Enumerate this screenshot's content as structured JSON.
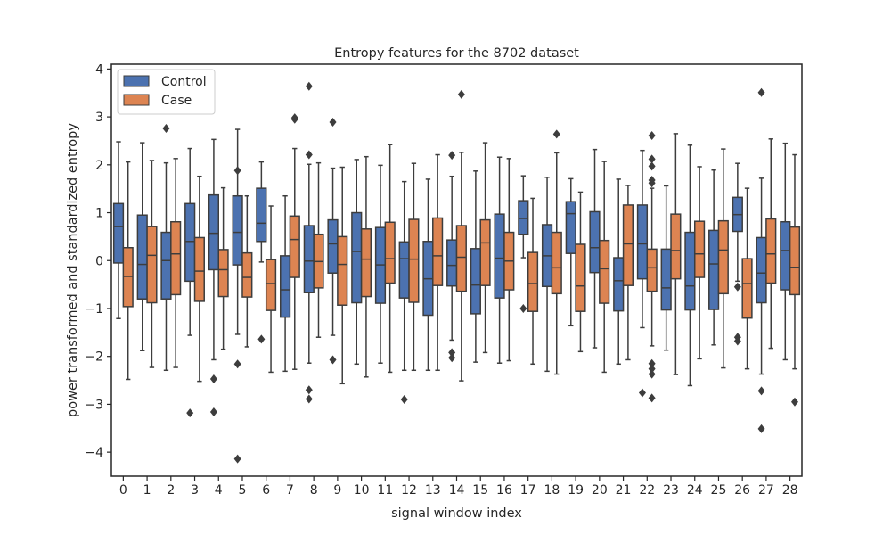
{
  "chart_data": {
    "type": "boxplot",
    "title": "Entropy features for the 8702 dataset",
    "xlabel": "signal window index",
    "ylabel": "power transformed and standardized entropy",
    "categories": [
      "0",
      "1",
      "2",
      "3",
      "4",
      "5",
      "6",
      "7",
      "8",
      "9",
      "10",
      "11",
      "12",
      "13",
      "14",
      "15",
      "16",
      "17",
      "18",
      "19",
      "20",
      "21",
      "22",
      "23",
      "24",
      "25",
      "26",
      "27",
      "28"
    ],
    "ylim": [
      -4.5,
      4.1
    ],
    "yticks": [
      4,
      3,
      2,
      1,
      0,
      -1,
      -2,
      -3,
      -4
    ],
    "ytick_labels": [
      "4",
      "3",
      "2",
      "1",
      "0",
      "−1",
      "−2",
      "−3",
      "−4"
    ],
    "legend": {
      "position": "top-left"
    },
    "series": [
      {
        "name": "Control",
        "color": "#4c72b0",
        "boxes": [
          {
            "q1": -0.05,
            "median": 0.71,
            "q3": 1.19,
            "whislo": -1.21,
            "whishi": 2.48,
            "fliers": []
          },
          {
            "q1": -0.8,
            "median": -0.08,
            "q3": 0.95,
            "whislo": -1.88,
            "whishi": 2.46,
            "fliers": []
          },
          {
            "q1": -0.8,
            "median": 0.0,
            "q3": 0.59,
            "whislo": -2.29,
            "whishi": 2.04,
            "fliers": [
              2.76
            ]
          },
          {
            "q1": -0.43,
            "median": 0.4,
            "q3": 1.19,
            "whislo": -1.56,
            "whishi": 2.34,
            "fliers": [
              -3.18
            ]
          },
          {
            "q1": -0.19,
            "median": 0.57,
            "q3": 1.37,
            "whislo": -2.07,
            "whishi": 2.53,
            "fliers": [
              -2.47,
              -3.16
            ]
          },
          {
            "q1": -0.09,
            "median": 0.59,
            "q3": 1.35,
            "whislo": -1.54,
            "whishi": 2.74,
            "fliers": [
              1.88,
              -2.16,
              -4.14
            ]
          },
          {
            "q1": 0.4,
            "median": 0.78,
            "q3": 1.51,
            "whislo": -0.03,
            "whishi": 2.06,
            "fliers": [
              -1.64
            ]
          },
          {
            "q1": -1.18,
            "median": -0.61,
            "q3": 0.1,
            "whislo": -2.31,
            "whishi": 1.35,
            "fliers": []
          },
          {
            "q1": -0.67,
            "median": -0.01,
            "q3": 0.73,
            "whislo": -2.14,
            "whishi": 2.01,
            "fliers": [
              3.64,
              2.21,
              -2.7,
              -2.89
            ]
          },
          {
            "q1": -0.26,
            "median": 0.35,
            "q3": 0.85,
            "whislo": -1.56,
            "whishi": 1.93,
            "fliers": [
              2.89,
              -2.07
            ]
          },
          {
            "q1": -0.88,
            "median": 0.19,
            "q3": 1.0,
            "whislo": -2.16,
            "whishi": 2.11,
            "fliers": []
          },
          {
            "q1": -0.89,
            "median": -0.09,
            "q3": 0.69,
            "whislo": -2.14,
            "whishi": 1.99,
            "fliers": []
          },
          {
            "q1": -0.78,
            "median": 0.04,
            "q3": 0.39,
            "whislo": -2.29,
            "whishi": 1.65,
            "fliers": [
              -2.9
            ]
          },
          {
            "q1": -1.14,
            "median": -0.38,
            "q3": 0.4,
            "whislo": -2.29,
            "whishi": 1.7,
            "fliers": []
          },
          {
            "q1": -0.53,
            "median": -0.1,
            "q3": 0.43,
            "whislo": -1.66,
            "whishi": 1.76,
            "fliers": [
              2.2,
              -1.92,
              -2.03
            ]
          },
          {
            "q1": -1.11,
            "median": -0.51,
            "q3": 0.25,
            "whislo": -2.12,
            "whishi": 1.87,
            "fliers": []
          },
          {
            "q1": -0.78,
            "median": 0.05,
            "q3": 0.97,
            "whislo": -2.14,
            "whishi": 2.16,
            "fliers": []
          },
          {
            "q1": 0.55,
            "median": 0.88,
            "q3": 1.25,
            "whislo": 0.06,
            "whishi": 1.77,
            "fliers": [
              -1.0
            ]
          },
          {
            "q1": -0.54,
            "median": 0.1,
            "q3": 0.75,
            "whislo": -2.31,
            "whishi": 1.74,
            "fliers": []
          },
          {
            "q1": 0.15,
            "median": 0.98,
            "q3": 1.23,
            "whislo": -1.36,
            "whishi": 1.71,
            "fliers": []
          },
          {
            "q1": -0.25,
            "median": 0.27,
            "q3": 1.02,
            "whislo": -1.82,
            "whishi": 2.32,
            "fliers": []
          },
          {
            "q1": -1.05,
            "median": -0.42,
            "q3": 0.06,
            "whislo": -2.16,
            "whishi": 1.7,
            "fliers": []
          },
          {
            "q1": -0.38,
            "median": 0.35,
            "q3": 1.16,
            "whislo": -1.4,
            "whishi": 2.3,
            "fliers": [
              -2.76
            ]
          },
          {
            "q1": -1.03,
            "median": -0.57,
            "q3": 0.24,
            "whislo": -1.87,
            "whishi": 1.56,
            "fliers": []
          },
          {
            "q1": -1.03,
            "median": -0.53,
            "q3": 0.59,
            "whislo": -2.61,
            "whishi": 2.41,
            "fliers": []
          },
          {
            "q1": -1.02,
            "median": -0.07,
            "q3": 0.63,
            "whislo": -1.76,
            "whishi": 1.89,
            "fliers": []
          },
          {
            "q1": 0.61,
            "median": 0.96,
            "q3": 1.32,
            "whislo": -0.43,
            "whishi": 2.03,
            "fliers": [
              -0.55,
              -1.6,
              -1.68
            ]
          },
          {
            "q1": -0.88,
            "median": -0.26,
            "q3": 0.48,
            "whislo": -2.37,
            "whishi": 1.72,
            "fliers": [
              3.51,
              -2.72,
              -3.51
            ]
          },
          {
            "q1": -0.61,
            "median": 0.21,
            "q3": 0.81,
            "whislo": -2.07,
            "whishi": 2.45,
            "fliers": []
          }
        ]
      },
      {
        "name": "Case",
        "color": "#dd8452",
        "boxes": [
          {
            "q1": -0.96,
            "median": -0.33,
            "q3": 0.27,
            "whislo": -2.48,
            "whishi": 2.06,
            "fliers": []
          },
          {
            "q1": -0.88,
            "median": 0.11,
            "q3": 0.71,
            "whislo": -2.23,
            "whishi": 2.09,
            "fliers": []
          },
          {
            "q1": -0.71,
            "median": 0.14,
            "q3": 0.81,
            "whislo": -2.23,
            "whishi": 2.13,
            "fliers": []
          },
          {
            "q1": -0.85,
            "median": -0.22,
            "q3": 0.48,
            "whislo": -2.52,
            "whishi": 1.76,
            "fliers": []
          },
          {
            "q1": -0.75,
            "median": -0.19,
            "q3": 0.23,
            "whislo": -1.85,
            "whishi": 1.52,
            "fliers": []
          },
          {
            "q1": -0.76,
            "median": -0.35,
            "q3": 0.16,
            "whislo": -1.8,
            "whishi": 1.35,
            "fliers": []
          },
          {
            "q1": -1.04,
            "median": -0.48,
            "q3": 0.02,
            "whislo": -2.33,
            "whishi": 1.14,
            "fliers": []
          },
          {
            "q1": -0.35,
            "median": 0.44,
            "q3": 0.93,
            "whislo": -2.27,
            "whishi": 2.34,
            "fliers": [
              2.98,
              2.95
            ]
          },
          {
            "q1": -0.57,
            "median": -0.02,
            "q3": 0.55,
            "whislo": -1.6,
            "whishi": 2.04,
            "fliers": []
          },
          {
            "q1": -0.93,
            "median": -0.08,
            "q3": 0.5,
            "whislo": -2.57,
            "whishi": 1.95,
            "fliers": []
          },
          {
            "q1": -0.75,
            "median": 0.03,
            "q3": 0.66,
            "whislo": -2.43,
            "whishi": 2.17,
            "fliers": []
          },
          {
            "q1": -0.47,
            "median": 0.04,
            "q3": 0.8,
            "whislo": -2.33,
            "whishi": 2.42,
            "fliers": []
          },
          {
            "q1": -0.87,
            "median": 0.03,
            "q3": 0.86,
            "whislo": -2.29,
            "whishi": 2.03,
            "fliers": []
          },
          {
            "q1": -0.52,
            "median": 0.1,
            "q3": 0.89,
            "whislo": -2.29,
            "whishi": 2.21,
            "fliers": []
          },
          {
            "q1": -0.64,
            "median": 0.07,
            "q3": 0.73,
            "whislo": -2.51,
            "whishi": 2.26,
            "fliers": [
              3.47
            ]
          },
          {
            "q1": -0.52,
            "median": 0.37,
            "q3": 0.85,
            "whislo": -1.92,
            "whishi": 2.46,
            "fliers": []
          },
          {
            "q1": -0.61,
            "median": -0.01,
            "q3": 0.59,
            "whislo": -2.09,
            "whishi": 2.13,
            "fliers": []
          },
          {
            "q1": -1.06,
            "median": -0.48,
            "q3": 0.17,
            "whislo": -2.16,
            "whishi": 1.3,
            "fliers": []
          },
          {
            "q1": -0.69,
            "median": -0.15,
            "q3": 0.59,
            "whislo": -2.37,
            "whishi": 2.25,
            "fliers": [
              2.64
            ]
          },
          {
            "q1": -1.06,
            "median": -0.53,
            "q3": 0.34,
            "whislo": -1.9,
            "whishi": 1.43,
            "fliers": []
          },
          {
            "q1": -0.89,
            "median": -0.17,
            "q3": 0.42,
            "whislo": -2.33,
            "whishi": 2.07,
            "fliers": []
          },
          {
            "q1": -0.52,
            "median": 0.35,
            "q3": 1.16,
            "whislo": -2.07,
            "whishi": 1.57,
            "fliers": []
          },
          {
            "q1": -0.64,
            "median": -0.15,
            "q3": 0.24,
            "whislo": -1.78,
            "whishi": 1.51,
            "fliers": [
              2.61,
              2.12,
              1.97,
              1.68,
              1.62,
              -2.15,
              -2.26,
              -2.37,
              -2.87
            ]
          },
          {
            "q1": -0.38,
            "median": 0.21,
            "q3": 0.97,
            "whislo": -2.38,
            "whishi": 2.65,
            "fliers": []
          },
          {
            "q1": -0.35,
            "median": 0.14,
            "q3": 0.82,
            "whislo": -2.05,
            "whishi": 1.96,
            "fliers": []
          },
          {
            "q1": -0.69,
            "median": 0.22,
            "q3": 0.83,
            "whislo": -2.24,
            "whishi": 2.33,
            "fliers": []
          },
          {
            "q1": -1.2,
            "median": -0.48,
            "q3": 0.04,
            "whislo": -2.26,
            "whishi": 1.51,
            "fliers": []
          },
          {
            "q1": -0.47,
            "median": 0.14,
            "q3": 0.87,
            "whislo": -1.83,
            "whishi": 2.54,
            "fliers": []
          },
          {
            "q1": -0.71,
            "median": -0.14,
            "q3": 0.7,
            "whislo": -2.26,
            "whishi": 2.21,
            "fliers": [
              -2.95
            ]
          }
        ]
      }
    ]
  }
}
